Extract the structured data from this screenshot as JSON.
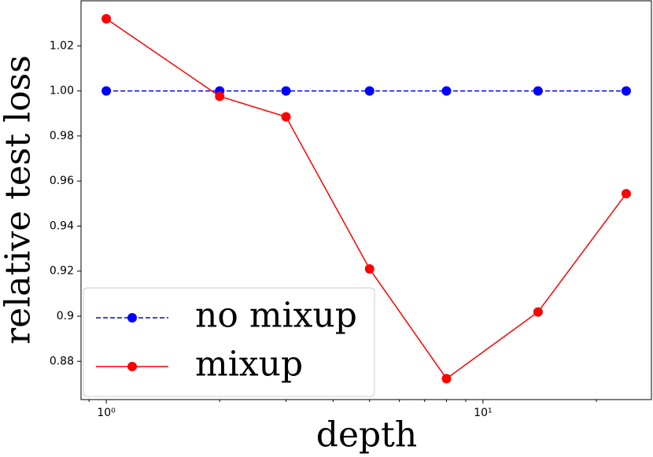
{
  "chart_data": {
    "type": "line",
    "xlabel": "depth",
    "ylabel": "relative test loss",
    "x": [
      1,
      2,
      3,
      5,
      8,
      14,
      24
    ],
    "series": [
      {
        "name": "no mixup",
        "color": "#0000ff",
        "linestyle": "dashed",
        "values": [
          1.0,
          1.0,
          1.0,
          1.0,
          1.0,
          1.0,
          1.0
        ]
      },
      {
        "name": "mixup",
        "color": "#ff0000",
        "linestyle": "solid",
        "values": [
          1.032,
          0.9976,
          0.9885,
          0.921,
          0.8723,
          0.9019,
          0.9544
        ]
      }
    ],
    "xscale": "log",
    "xlim": [
      0.857,
      28
    ],
    "ylim": [
      0.863,
      1.04
    ],
    "xticks": [
      {
        "value": 1,
        "label": "10⁰"
      },
      {
        "value": 10,
        "label": "10¹"
      }
    ],
    "yticks": [
      0.88,
      0.9,
      0.92,
      0.94,
      0.96,
      0.98,
      {
        "value": 1.0,
        "label": "1.00"
      },
      1.02
    ],
    "legend": "lower left"
  }
}
